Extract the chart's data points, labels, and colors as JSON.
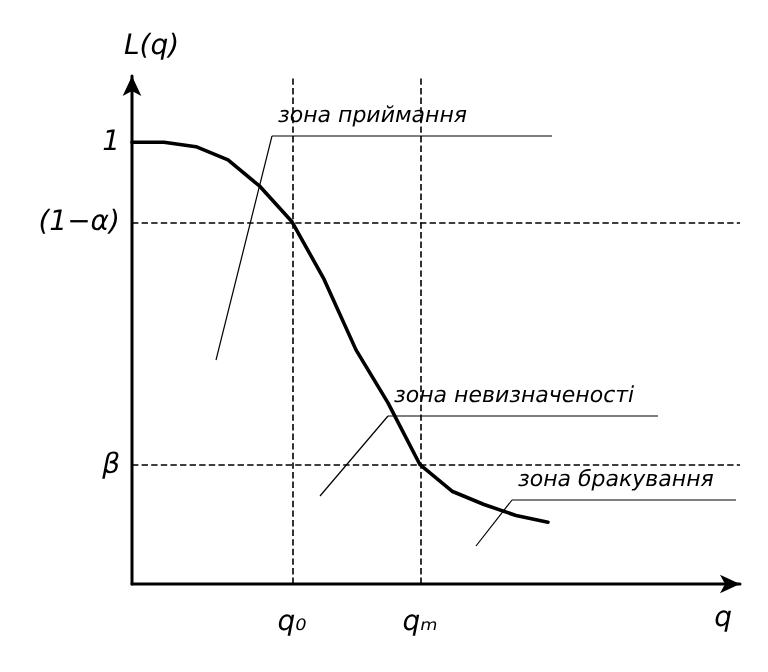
{
  "chart_data": {
    "type": "line",
    "xlabel": "q",
    "ylabel": "L(q)",
    "categories": [
      null,
      null,
      null,
      null,
      null,
      "q₀",
      null,
      null,
      null,
      "qₘ",
      null,
      null,
      null,
      null,
      null,
      null,
      null,
      null,
      null,
      null
    ],
    "series": [
      {
        "color": "#000000",
        "values": [
          1.0,
          1.0,
          0.99,
          0.96,
          0.9,
          0.82,
          0.69,
          0.53,
          0.41,
          0.27,
          0.21,
          0.18,
          0.155,
          0.14,
          null,
          null,
          null,
          null,
          null,
          null
        ]
      }
    ],
    "ylim": [
      0,
      1.15
    ],
    "yticks": [
      {
        "value": 1,
        "label": "1"
      },
      {
        "value": 0.82,
        "label": "(1−α)"
      },
      {
        "value": 0.27,
        "label": "β"
      }
    ],
    "ref_lines": [
      {
        "axis": "y",
        "value": 0.82,
        "line_style": "dashed"
      },
      {
        "axis": "y",
        "value": 0.27,
        "line_style": "dashed"
      },
      {
        "axis": "x",
        "value": "q₀",
        "line_style": "dashed"
      },
      {
        "axis": "x",
        "value": "qₘ",
        "line_style": "dashed"
      }
    ],
    "annotations": [
      "зона приймання",
      "зона невизначеності",
      "зона бракування"
    ],
    "grid": false,
    "marker": "none",
    "line_style": "solid"
  }
}
